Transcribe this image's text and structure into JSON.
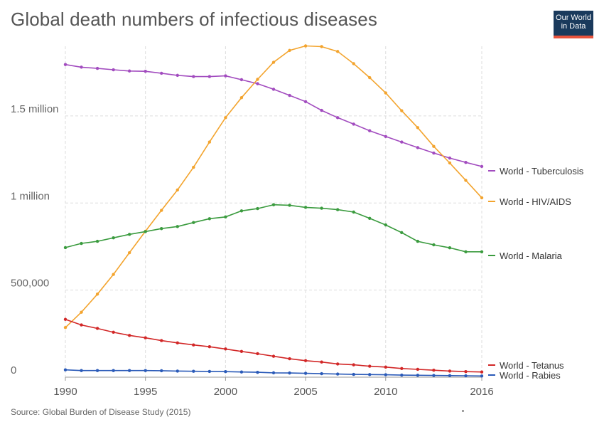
{
  "title": "Global death numbers of infectious diseases",
  "source": "Source: Global Burden of Disease Study (2015)",
  "logo": {
    "line1": "Our World",
    "line2": "in Data"
  },
  "chart_data": {
    "type": "line",
    "title": "Global death numbers of infectious diseases",
    "xlabel": "",
    "ylabel": "",
    "xlim": [
      1990,
      2016
    ],
    "ylim": [
      0,
      1900000
    ],
    "grid": true,
    "legend": "right",
    "x_ticks": [
      1990,
      1995,
      2000,
      2005,
      2010,
      2016
    ],
    "x_tick_labels": [
      "1990",
      "1995",
      "2000",
      "2005",
      "2010",
      "2016"
    ],
    "y_ticks": [
      0,
      500000,
      1000000,
      1500000
    ],
    "y_tick_labels": [
      "0",
      "500,000",
      "1 million",
      "1.5 million"
    ],
    "x": [
      1990,
      1991,
      1992,
      1993,
      1994,
      1995,
      1996,
      1997,
      1998,
      1999,
      2000,
      2001,
      2002,
      2003,
      2004,
      2005,
      2006,
      2007,
      2008,
      2009,
      2010,
      2011,
      2012,
      2013,
      2014,
      2015,
      2016
    ],
    "series": [
      {
        "name": "World - Tuberculosis",
        "color": "#a24cbf",
        "values": [
          1795000,
          1780000,
          1773000,
          1765000,
          1758000,
          1756000,
          1745000,
          1733000,
          1726000,
          1726000,
          1730000,
          1708000,
          1685000,
          1653000,
          1618000,
          1582000,
          1532000,
          1490000,
          1453000,
          1415000,
          1382000,
          1350000,
          1318000,
          1287000,
          1258000,
          1233000,
          1210000
        ]
      },
      {
        "name": "World - HIV/AIDS",
        "color": "#f3a42e",
        "values": [
          285000,
          373000,
          477000,
          590000,
          715000,
          838000,
          958000,
          1075000,
          1205000,
          1350000,
          1490000,
          1605000,
          1710000,
          1808000,
          1876000,
          1902000,
          1898000,
          1870000,
          1800000,
          1720000,
          1632000,
          1530000,
          1433000,
          1325000,
          1230000,
          1130000,
          1030000
        ]
      },
      {
        "name": "World - Malaria",
        "color": "#3a9b3e",
        "values": [
          744000,
          768000,
          780000,
          800000,
          820000,
          836000,
          853000,
          865000,
          888000,
          910000,
          920000,
          955000,
          968000,
          990000,
          987000,
          975000,
          970000,
          962000,
          948000,
          912000,
          874000,
          830000,
          780000,
          760000,
          743000,
          720000,
          720000
        ]
      },
      {
        "name": "World - Tetanus",
        "color": "#d22727",
        "values": [
          332000,
          300000,
          280000,
          258000,
          240000,
          226000,
          210000,
          197000,
          185000,
          175000,
          162000,
          148000,
          135000,
          120000,
          106000,
          95000,
          87000,
          76000,
          71000,
          63000,
          58000,
          50000,
          45000,
          40000,
          35000,
          32000,
          30000
        ]
      },
      {
        "name": "World - Rabies",
        "color": "#2a5ab8",
        "values": [
          42000,
          38000,
          38000,
          38000,
          38000,
          38000,
          37000,
          35000,
          34000,
          33000,
          32000,
          30000,
          28000,
          25000,
          24000,
          22000,
          20000,
          18000,
          16000,
          15000,
          14000,
          12000,
          11000,
          10000,
          9000,
          8000,
          7000
        ]
      }
    ]
  }
}
